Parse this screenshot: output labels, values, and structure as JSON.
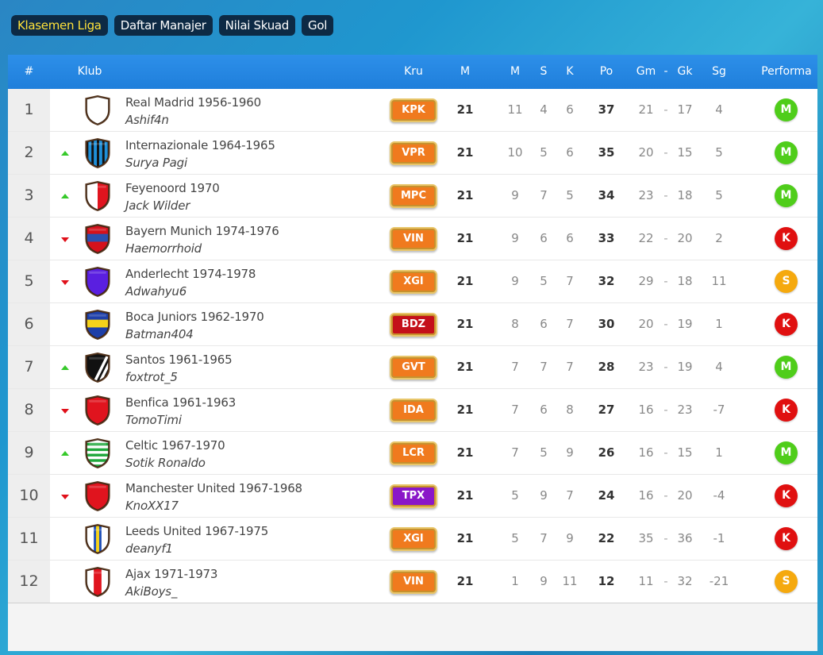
{
  "tabs": [
    {
      "label": "Klasemen Liga",
      "active": true
    },
    {
      "label": "Daftar Manajer",
      "active": false
    },
    {
      "label": "Nilai Skuad",
      "active": false
    },
    {
      "label": "Gol",
      "active": false
    }
  ],
  "header": {
    "rank": "#",
    "club": "Klub",
    "kru": "Kru",
    "played": "M",
    "won": "M",
    "drawn": "S",
    "lost": "K",
    "points": "Po",
    "gf": "Gm",
    "sep": "-",
    "ga": "Gk",
    "gd": "Sg",
    "form": "Performa"
  },
  "rows": [
    {
      "rank": "1",
      "move": "none",
      "club": "Real Madrid 1956-1960",
      "manager": "Ashif4n",
      "crest": {
        "type": "plain",
        "c1": "#ffffff",
        "c2": "#e4e4e4"
      },
      "kru": "KPK",
      "kru_color": "#f07a1e",
      "played": "21",
      "won": "11",
      "drawn": "4",
      "lost": "6",
      "points": "37",
      "gf": "21",
      "ga": "17",
      "gd": "4",
      "form": "M",
      "form_color": "#4fcd1a"
    },
    {
      "rank": "2",
      "move": "up",
      "club": "Internazionale 1964-1965",
      "manager": "Surya Pagi",
      "crest": {
        "type": "vstripes",
        "c1": "#1f8fd8",
        "c2": "#111111"
      },
      "kru": "VPR",
      "kru_color": "#f07a1e",
      "played": "21",
      "won": "10",
      "drawn": "5",
      "lost": "6",
      "points": "35",
      "gf": "20",
      "ga": "15",
      "gd": "5",
      "form": "M",
      "form_color": "#4fcd1a"
    },
    {
      "rank": "3",
      "move": "up",
      "club": "Feyenoord 1970",
      "manager": "Jack Wilder",
      "crest": {
        "type": "split",
        "c1": "#ffffff",
        "c2": "#e0141e"
      },
      "kru": "MPC",
      "kru_color": "#f07a1e",
      "played": "21",
      "won": "9",
      "drawn": "7",
      "lost": "5",
      "points": "34",
      "gf": "23",
      "ga": "18",
      "gd": "5",
      "form": "M",
      "form_color": "#4fcd1a"
    },
    {
      "rank": "4",
      "move": "down",
      "club": "Bayern Munich 1974-1976",
      "manager": "Haemorrhoid",
      "crest": {
        "type": "hband",
        "c1": "#d4111c",
        "c2": "#2a4fb0"
      },
      "kru": "VIN",
      "kru_color": "#f07a1e",
      "played": "21",
      "won": "9",
      "drawn": "6",
      "lost": "6",
      "points": "33",
      "gf": "22",
      "ga": "20",
      "gd": "2",
      "form": "K",
      "form_color": "#e01010"
    },
    {
      "rank": "5",
      "move": "down",
      "club": "Anderlecht 1974-1978",
      "manager": "Adwahyu6",
      "crest": {
        "type": "plain",
        "c1": "#5a1fe0",
        "c2": "#3a10b0"
      },
      "kru": "XGI",
      "kru_color": "#f07a1e",
      "played": "21",
      "won": "9",
      "drawn": "5",
      "lost": "7",
      "points": "32",
      "gf": "29",
      "ga": "18",
      "gd": "11",
      "form": "S",
      "form_color": "#f5a90e"
    },
    {
      "rank": "6",
      "move": "none",
      "club": "Boca Juniors 1962-1970",
      "manager": "Batman404",
      "crest": {
        "type": "hband",
        "c1": "#1e3fa8",
        "c2": "#f6d21a"
      },
      "kru": "BDZ",
      "kru_color": "#c4101a",
      "played": "21",
      "won": "8",
      "drawn": "6",
      "lost": "7",
      "points": "30",
      "gf": "20",
      "ga": "19",
      "gd": "1",
      "form": "K",
      "form_color": "#e01010"
    },
    {
      "rank": "7",
      "move": "up",
      "club": "Santos 1961-1965",
      "manager": "foxtrot_5",
      "crest": {
        "type": "diag",
        "c1": "#111111",
        "c2": "#ffffff"
      },
      "kru": "GVT",
      "kru_color": "#f07a1e",
      "played": "21",
      "won": "7",
      "drawn": "7",
      "lost": "7",
      "points": "28",
      "gf": "23",
      "ga": "19",
      "gd": "4",
      "form": "M",
      "form_color": "#4fcd1a"
    },
    {
      "rank": "8",
      "move": "down",
      "club": "Benfica 1961-1963",
      "manager": "TomoTimi",
      "crest": {
        "type": "plain",
        "c1": "#e0141e",
        "c2": "#b80d16"
      },
      "kru": "IDA",
      "kru_color": "#f07a1e",
      "played": "21",
      "won": "7",
      "drawn": "6",
      "lost": "8",
      "points": "27",
      "gf": "16",
      "ga": "23",
      "gd": "-7",
      "form": "K",
      "form_color": "#e01010"
    },
    {
      "rank": "9",
      "move": "up",
      "club": "Celtic 1967-1970",
      "manager": "Sotik Ronaldo",
      "crest": {
        "type": "hstripes",
        "c1": "#1fa83c",
        "c2": "#ffffff"
      },
      "kru": "LCR",
      "kru_color": "#f07a1e",
      "played": "21",
      "won": "7",
      "drawn": "5",
      "lost": "9",
      "points": "26",
      "gf": "16",
      "ga": "15",
      "gd": "1",
      "form": "M",
      "form_color": "#4fcd1a"
    },
    {
      "rank": "10",
      "move": "down",
      "club": "Manchester United 1967-1968",
      "manager": "KnoXX17",
      "crest": {
        "type": "plain",
        "c1": "#e0141e",
        "c2": "#b80d16"
      },
      "kru": "TPX",
      "kru_color": "#8a17c8",
      "played": "21",
      "won": "5",
      "drawn": "9",
      "lost": "7",
      "points": "24",
      "gf": "16",
      "ga": "20",
      "gd": "-4",
      "form": "K",
      "form_color": "#e01010"
    },
    {
      "rank": "11",
      "move": "none",
      "club": "Leeds United 1967-1975",
      "manager": "deanyf1",
      "crest": {
        "type": "vcenter",
        "c1": "#ffffff",
        "c2": "#1e4fb8",
        "c3": "#f6d21a"
      },
      "kru": "XGI",
      "kru_color": "#f07a1e",
      "played": "21",
      "won": "5",
      "drawn": "7",
      "lost": "9",
      "points": "22",
      "gf": "35",
      "ga": "36",
      "gd": "-1",
      "form": "K",
      "form_color": "#e01010"
    },
    {
      "rank": "12",
      "move": "none",
      "club": "Ajax 1971-1973",
      "manager": "AkiBoys_",
      "crest": {
        "type": "vcenter",
        "c1": "#ffffff",
        "c2": "#e0141e",
        "c3": "#e0141e"
      },
      "kru": "VIN",
      "kru_color": "#f07a1e",
      "played": "21",
      "won": "1",
      "drawn": "9",
      "lost": "11",
      "points": "12",
      "gf": "11",
      "ga": "32",
      "gd": "-21",
      "form": "S",
      "form_color": "#f5a90e"
    }
  ]
}
